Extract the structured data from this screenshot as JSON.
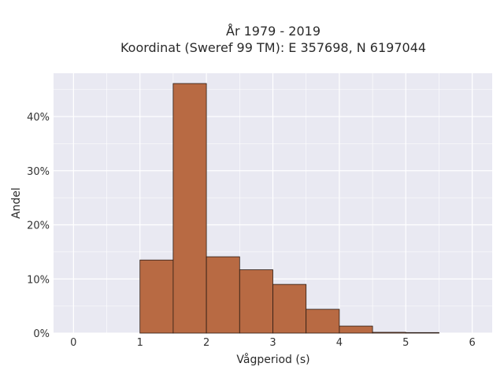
{
  "chart_data": {
    "type": "bar",
    "title_lines": [
      "År 1979 - 2019",
      "Koordinat (Sweref 99 TM): E 357698, N 6197044"
    ],
    "xlabel": "Vågperiod (s)",
    "ylabel": "Andel",
    "xlim": [
      -0.3,
      6.3
    ],
    "ylim": [
      0,
      48
    ],
    "x_ticks": [
      0,
      1,
      2,
      3,
      4,
      5,
      6
    ],
    "y_ticks": [
      0,
      10,
      20,
      30,
      40
    ],
    "y_tick_labels": [
      "0%",
      "10%",
      "20%",
      "30%",
      "40%"
    ],
    "grid": true,
    "bin_edges": [
      1.0,
      1.5,
      2.0,
      2.5,
      3.0,
      3.5,
      4.0,
      4.5,
      5.0,
      5.5
    ],
    "values": [
      13.5,
      46.1,
      14.1,
      11.7,
      9.0,
      4.4,
      1.3,
      0.15,
      0.1
    ],
    "bar_color": "#b86a43",
    "bar_edge_color": "#2a1a12",
    "plot_background": "#e9e9f2",
    "grid_color": "#ffffff"
  }
}
